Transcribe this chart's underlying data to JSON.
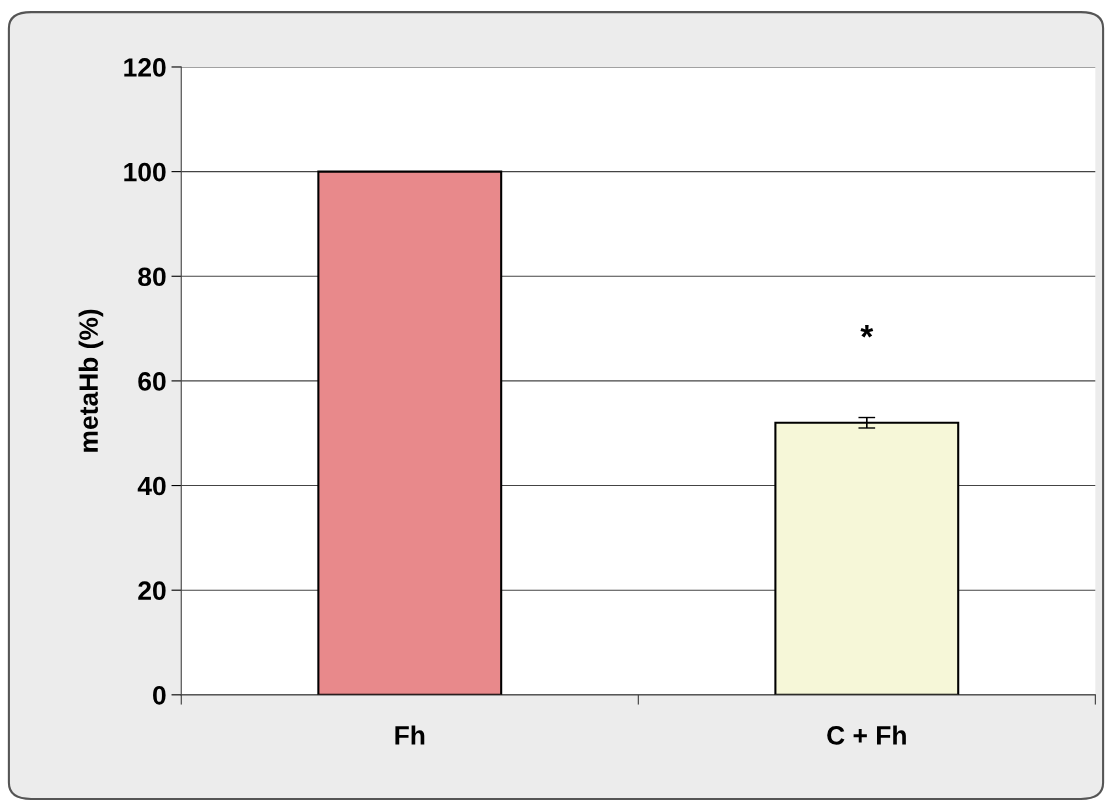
{
  "chart_data": {
    "type": "bar",
    "ylabel": "metaHb (%)",
    "categories": [
      "Fh",
      "C + Fh"
    ],
    "values": [
      100,
      52
    ],
    "colors": [
      "#e8898b",
      "#f6f7d8"
    ],
    "errors": [
      null,
      1
    ],
    "ylim": [
      0,
      120
    ],
    "yticks": [
      0,
      20,
      40,
      60,
      80,
      100,
      120
    ],
    "grid": "y",
    "annotations": [
      "*"
    ]
  }
}
